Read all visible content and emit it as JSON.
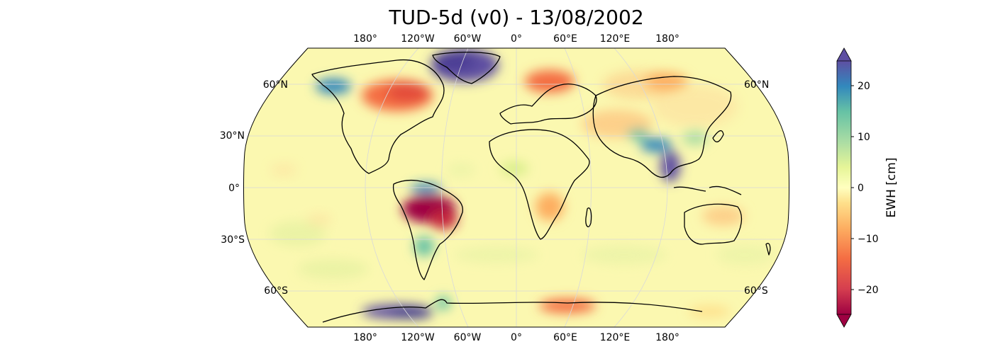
{
  "title": "TUD-5d (v0) - 13/08/2002",
  "longitude_labels_top": [
    "180°",
    "120°W",
    "60°W",
    "0°",
    "60°E",
    "120°E",
    "180°"
  ],
  "longitude_labels_bottom": [
    "180°",
    "120°W",
    "60°W",
    "0°",
    "60°E",
    "120°E",
    "180°"
  ],
  "latitude_labels_left": [
    "60°N",
    "30°N",
    "0°",
    "30°S",
    "60°S"
  ],
  "latitude_labels_right": [
    "60°N",
    "60°S"
  ],
  "colorbar": {
    "label": "EWH [cm]",
    "ticks": [
      "20",
      "10",
      "0",
      "−10",
      "−20"
    ],
    "range": [
      -25,
      25
    ],
    "colormap": "Spectral",
    "extend": "both"
  },
  "colors": {
    "background_field": "#fbf8b0",
    "coastline": "#000000",
    "graticule": "#d9d9d9"
  },
  "anomalies": [
    {
      "region": "Greenland",
      "sign": "positive"
    },
    {
      "region": "Alaska",
      "sign": "positive"
    },
    {
      "region": "Canada",
      "sign": "negative"
    },
    {
      "region": "Amazon basin",
      "sign": "strongly negative"
    },
    {
      "region": "Southeast Asia",
      "sign": "positive"
    },
    {
      "region": "West Antarctica",
      "sign": "positive"
    },
    {
      "region": "East Antarctica coast",
      "sign": "negative"
    },
    {
      "region": "Southern Africa",
      "sign": "negative"
    },
    {
      "region": "Northern Europe",
      "sign": "negative"
    }
  ]
}
